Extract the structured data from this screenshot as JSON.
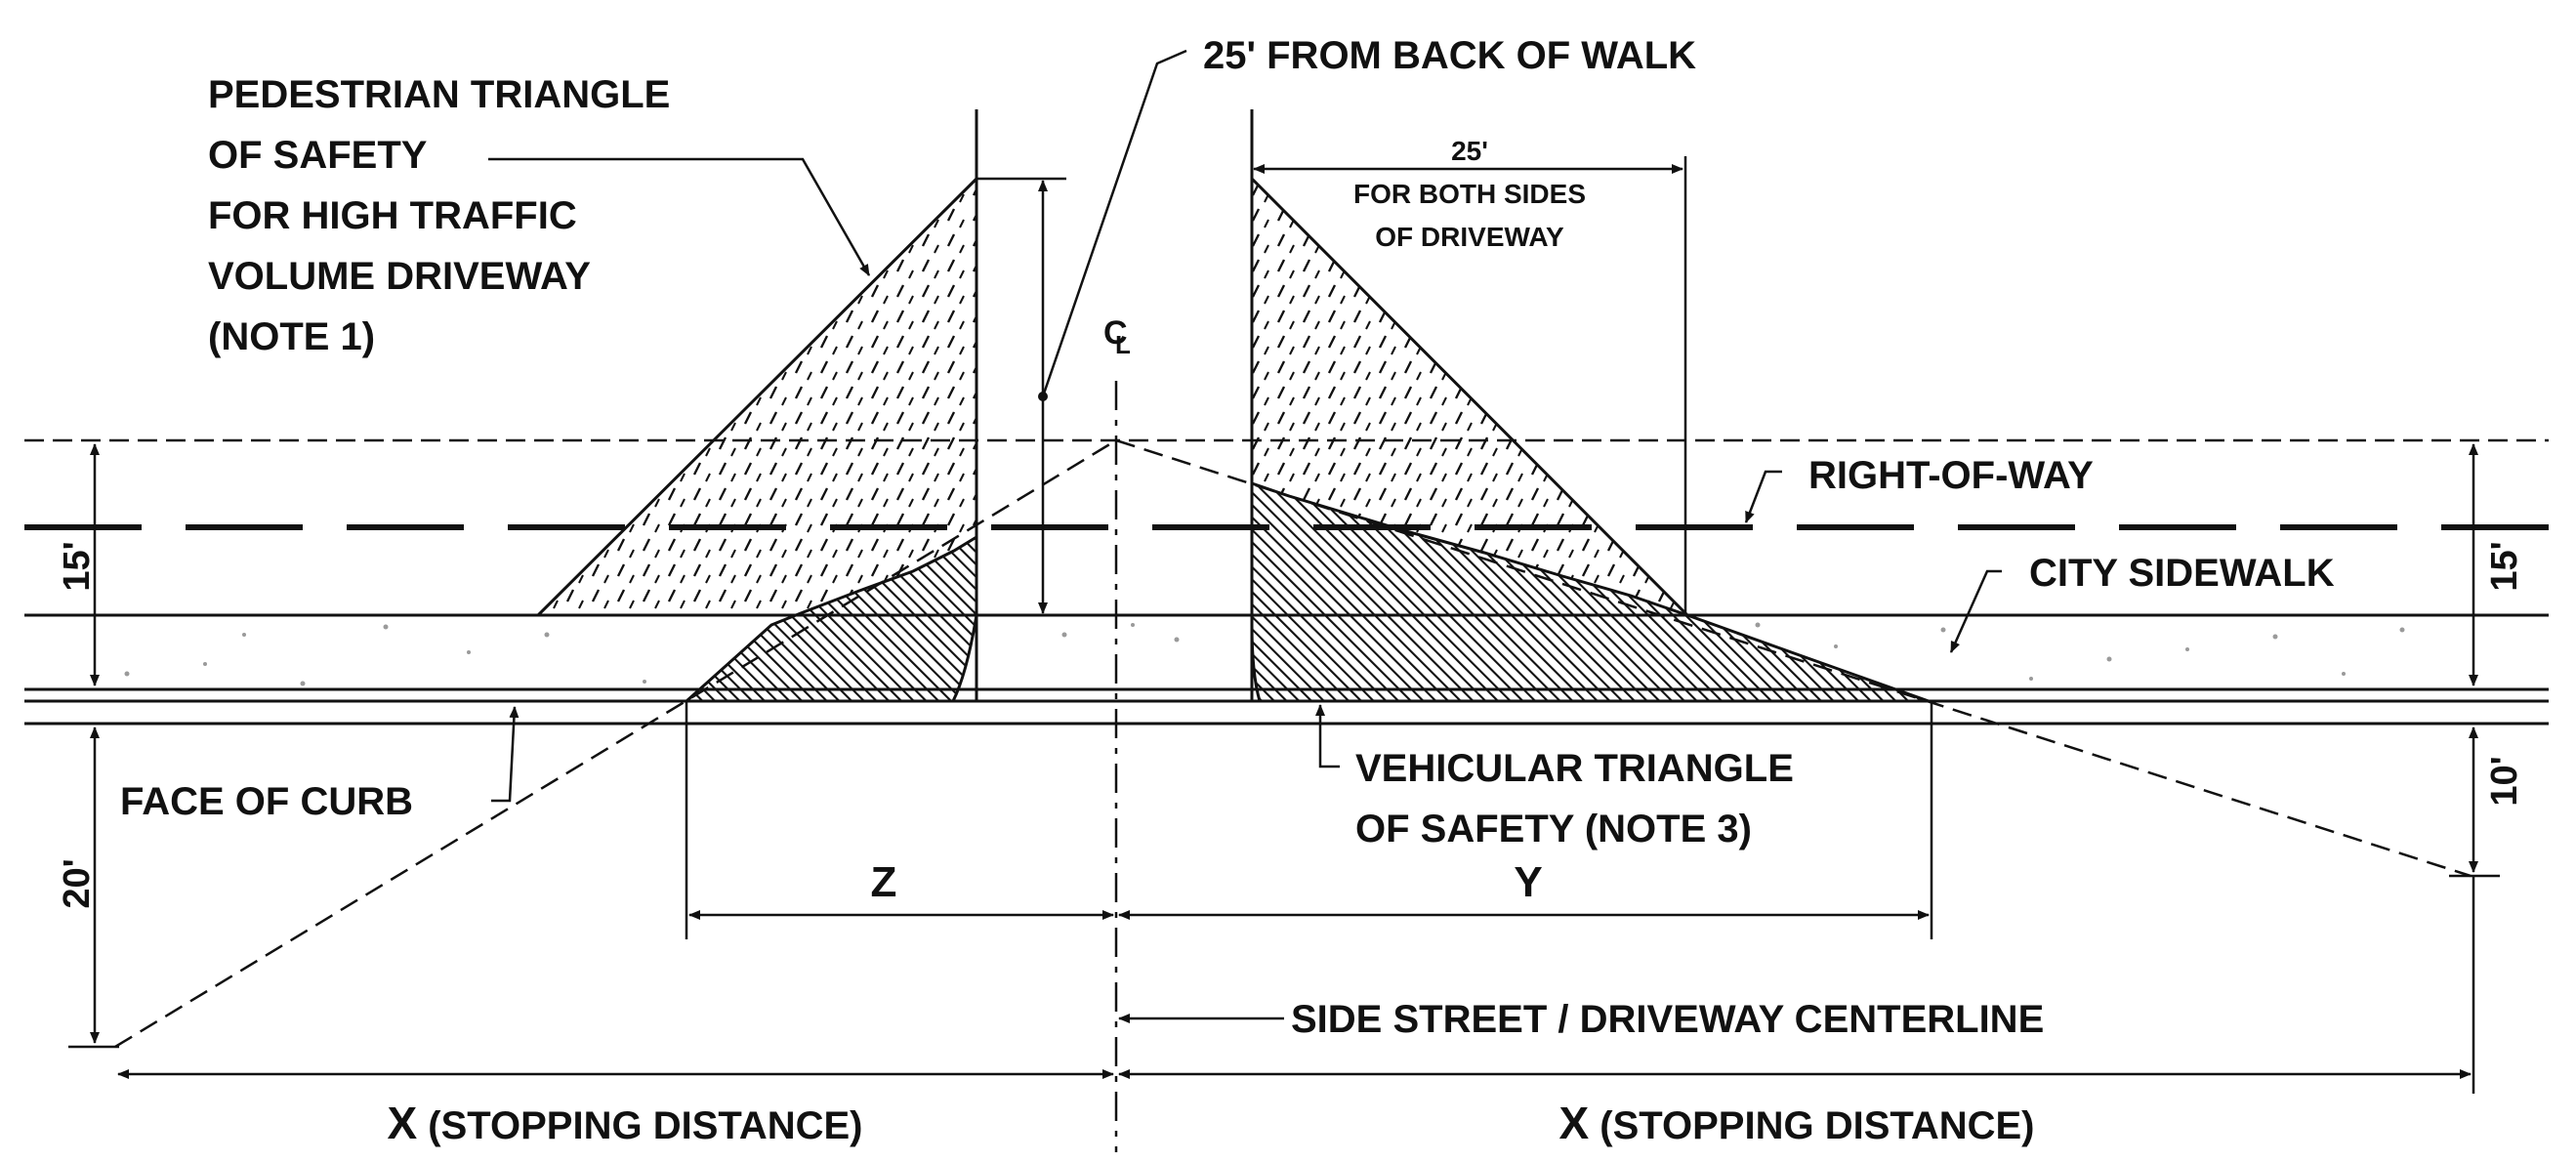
{
  "labels": {
    "pedestrian_1": "PEDESTRIAN TRIANGLE",
    "pedestrian_2": "OF SAFETY",
    "pedestrian_3": "FOR HIGH TRAFFIC",
    "pedestrian_4": "VOLUME DRIVEWAY",
    "pedestrian_5": "(NOTE 1)",
    "back_of_walk": "25' FROM BACK OF WALK",
    "dim_25": "25'",
    "both_sides_1": "FOR BOTH SIDES",
    "both_sides_2": "OF DRIVEWAY",
    "cl_c": "C",
    "cl_l": "L",
    "right_of_way": "RIGHT-OF-WAY",
    "city_sidewalk": "CITY SIDEWALK",
    "dim_15_left": "15'",
    "dim_15_right": "15'",
    "dim_10": "10'",
    "dim_20": "20'",
    "face_of_curb": "FACE OF CURB",
    "vehicular_1": "VEHICULAR TRIANGLE",
    "vehicular_2": "OF SAFETY (NOTE 3)",
    "dim_z": "Z",
    "dim_y": "Y",
    "centerline_note": "SIDE STREET / DRIVEWAY CENTERLINE",
    "x_left_letter": "X",
    "x_left_text": " (STOPPING DISTANCE)",
    "x_right_letter": "X",
    "x_right_text": " (STOPPING DISTANCE)"
  },
  "colors": {
    "line": "#111111",
    "background": "#ffffff",
    "speckle": "#9a9a9a"
  }
}
